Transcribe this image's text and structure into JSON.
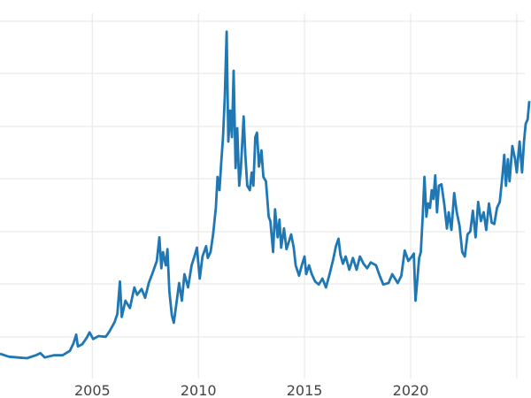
{
  "chart_data": {
    "type": "line",
    "title": "",
    "xlabel": "",
    "ylabel": "",
    "x_ticks": [
      "2005",
      "2010",
      "2015",
      "2020"
    ],
    "x_gridlines": [
      2005,
      2010,
      2015,
      2020,
      2025
    ],
    "xlim": [
      2000.65,
      2025.67
    ],
    "ylim": [
      -1.7,
      52.3
    ],
    "grid": true,
    "legend": "none",
    "line_color": "#1f77b4",
    "grid_color": "#ebebeb",
    "series": [
      {
        "points": [
          [
            2000.65,
            4.3
          ],
          [
            2001.07,
            3.9
          ],
          [
            2001.49,
            3.8
          ],
          [
            2001.92,
            3.7
          ],
          [
            2002.34,
            4.1
          ],
          [
            2002.55,
            4.4
          ],
          [
            2002.76,
            3.8
          ],
          [
            2003.18,
            4.1
          ],
          [
            2003.6,
            4.1
          ],
          [
            2003.94,
            4.7
          ],
          [
            2004.11,
            5.7
          ],
          [
            2004.24,
            6.9
          ],
          [
            2004.32,
            5.3
          ],
          [
            2004.53,
            5.6
          ],
          [
            2004.74,
            6.5
          ],
          [
            2004.87,
            7.2
          ],
          [
            2005.04,
            6.3
          ],
          [
            2005.29,
            6.7
          ],
          [
            2005.63,
            6.6
          ],
          [
            2005.8,
            7.3
          ],
          [
            2006.05,
            8.6
          ],
          [
            2006.18,
            9.7
          ],
          [
            2006.3,
            14.1
          ],
          [
            2006.39,
            9.3
          ],
          [
            2006.56,
            11.5
          ],
          [
            2006.77,
            10.5
          ],
          [
            2006.98,
            13.3
          ],
          [
            2007.11,
            12.3
          ],
          [
            2007.32,
            13.1
          ],
          [
            2007.49,
            11.9
          ],
          [
            2007.66,
            13.9
          ],
          [
            2007.82,
            15.1
          ],
          [
            2008.04,
            16.9
          ],
          [
            2008.16,
            20.1
          ],
          [
            2008.25,
            15.9
          ],
          [
            2008.33,
            18.1
          ],
          [
            2008.46,
            16.3
          ],
          [
            2008.54,
            18.5
          ],
          [
            2008.63,
            12.7
          ],
          [
            2008.75,
            9.5
          ],
          [
            2008.84,
            8.5
          ],
          [
            2008.96,
            11.1
          ],
          [
            2009.09,
            13.9
          ],
          [
            2009.22,
            11.5
          ],
          [
            2009.34,
            15.1
          ],
          [
            2009.51,
            13.3
          ],
          [
            2009.68,
            16.3
          ],
          [
            2009.81,
            17.5
          ],
          [
            2009.93,
            18.7
          ],
          [
            2010.06,
            14.5
          ],
          [
            2010.19,
            17.5
          ],
          [
            2010.36,
            18.9
          ],
          [
            2010.44,
            17.3
          ],
          [
            2010.57,
            18.1
          ],
          [
            2010.69,
            20.5
          ],
          [
            2010.82,
            24.1
          ],
          [
            2010.9,
            28.3
          ],
          [
            2010.99,
            26.5
          ],
          [
            2011.07,
            30.1
          ],
          [
            2011.16,
            33.7
          ],
          [
            2011.24,
            39.1
          ],
          [
            2011.33,
            48.0
          ],
          [
            2011.41,
            33.1
          ],
          [
            2011.5,
            37.3
          ],
          [
            2011.58,
            33.7
          ],
          [
            2011.66,
            42.7
          ],
          [
            2011.75,
            29.5
          ],
          [
            2011.83,
            34.9
          ],
          [
            2011.92,
            27.1
          ],
          [
            2012.0,
            29.5
          ],
          [
            2012.13,
            36.5
          ],
          [
            2012.21,
            31.3
          ],
          [
            2012.3,
            27.1
          ],
          [
            2012.42,
            26.5
          ],
          [
            2012.51,
            28.9
          ],
          [
            2012.59,
            27.1
          ],
          [
            2012.68,
            33.7
          ],
          [
            2012.76,
            34.3
          ],
          [
            2012.85,
            29.7
          ],
          [
            2012.97,
            31.9
          ],
          [
            2013.06,
            28.3
          ],
          [
            2013.18,
            27.7
          ],
          [
            2013.31,
            22.9
          ],
          [
            2013.39,
            22.3
          ],
          [
            2013.52,
            18.1
          ],
          [
            2013.61,
            23.9
          ],
          [
            2013.73,
            20.1
          ],
          [
            2013.82,
            22.5
          ],
          [
            2013.9,
            18.7
          ],
          [
            2014.03,
            21.3
          ],
          [
            2014.15,
            18.5
          ],
          [
            2014.24,
            19.3
          ],
          [
            2014.37,
            20.5
          ],
          [
            2014.49,
            18.7
          ],
          [
            2014.58,
            16.3
          ],
          [
            2014.74,
            14.9
          ],
          [
            2014.87,
            16.3
          ],
          [
            2015.0,
            17.5
          ],
          [
            2015.08,
            15.1
          ],
          [
            2015.21,
            16.3
          ],
          [
            2015.34,
            15.1
          ],
          [
            2015.5,
            14.1
          ],
          [
            2015.67,
            13.7
          ],
          [
            2015.84,
            14.5
          ],
          [
            2016.01,
            13.3
          ],
          [
            2016.18,
            15.1
          ],
          [
            2016.35,
            17.1
          ],
          [
            2016.48,
            18.9
          ],
          [
            2016.6,
            19.9
          ],
          [
            2016.69,
            17.7
          ],
          [
            2016.81,
            16.5
          ],
          [
            2016.94,
            17.5
          ],
          [
            2017.11,
            15.7
          ],
          [
            2017.28,
            17.3
          ],
          [
            2017.45,
            15.7
          ],
          [
            2017.61,
            17.5
          ],
          [
            2017.78,
            16.5
          ],
          [
            2017.95,
            15.9
          ],
          [
            2018.12,
            16.7
          ],
          [
            2018.37,
            16.3
          ],
          [
            2018.54,
            14.9
          ],
          [
            2018.71,
            13.7
          ],
          [
            2018.96,
            13.9
          ],
          [
            2019.13,
            15.1
          ],
          [
            2019.39,
            13.9
          ],
          [
            2019.56,
            14.9
          ],
          [
            2019.72,
            18.3
          ],
          [
            2019.89,
            16.9
          ],
          [
            2020.06,
            17.5
          ],
          [
            2020.15,
            17.9
          ],
          [
            2020.23,
            11.5
          ],
          [
            2020.32,
            14.5
          ],
          [
            2020.4,
            17.3
          ],
          [
            2020.48,
            18.1
          ],
          [
            2020.57,
            23.1
          ],
          [
            2020.65,
            28.3
          ],
          [
            2020.74,
            22.9
          ],
          [
            2020.82,
            24.7
          ],
          [
            2020.91,
            24.1
          ],
          [
            2020.99,
            26.5
          ],
          [
            2021.07,
            25.3
          ],
          [
            2021.16,
            28.5
          ],
          [
            2021.24,
            23.5
          ],
          [
            2021.33,
            27.1
          ],
          [
            2021.45,
            27.3
          ],
          [
            2021.58,
            24.7
          ],
          [
            2021.71,
            21.3
          ],
          [
            2021.79,
            23.5
          ],
          [
            2021.92,
            21.1
          ],
          [
            2022.05,
            26.1
          ],
          [
            2022.17,
            23.5
          ],
          [
            2022.3,
            21.7
          ],
          [
            2022.43,
            18.1
          ],
          [
            2022.55,
            17.5
          ],
          [
            2022.68,
            20.5
          ],
          [
            2022.81,
            20.9
          ],
          [
            2022.93,
            23.7
          ],
          [
            2023.06,
            20.1
          ],
          [
            2023.18,
            24.9
          ],
          [
            2023.31,
            22.3
          ],
          [
            2023.44,
            23.5
          ],
          [
            2023.56,
            21.1
          ],
          [
            2023.69,
            24.7
          ],
          [
            2023.82,
            22.1
          ],
          [
            2023.94,
            21.9
          ],
          [
            2024.07,
            24.1
          ],
          [
            2024.2,
            24.9
          ],
          [
            2024.32,
            28.3
          ],
          [
            2024.41,
            31.3
          ],
          [
            2024.49,
            27.1
          ],
          [
            2024.58,
            30.7
          ],
          [
            2024.66,
            27.7
          ],
          [
            2024.79,
            32.5
          ],
          [
            2024.92,
            30.7
          ],
          [
            2025.0,
            28.9
          ],
          [
            2025.13,
            33.1
          ],
          [
            2025.25,
            28.9
          ],
          [
            2025.34,
            33.1
          ],
          [
            2025.42,
            35.5
          ],
          [
            2025.51,
            36.1
          ],
          [
            2025.59,
            38.6
          ]
        ]
      }
    ]
  }
}
